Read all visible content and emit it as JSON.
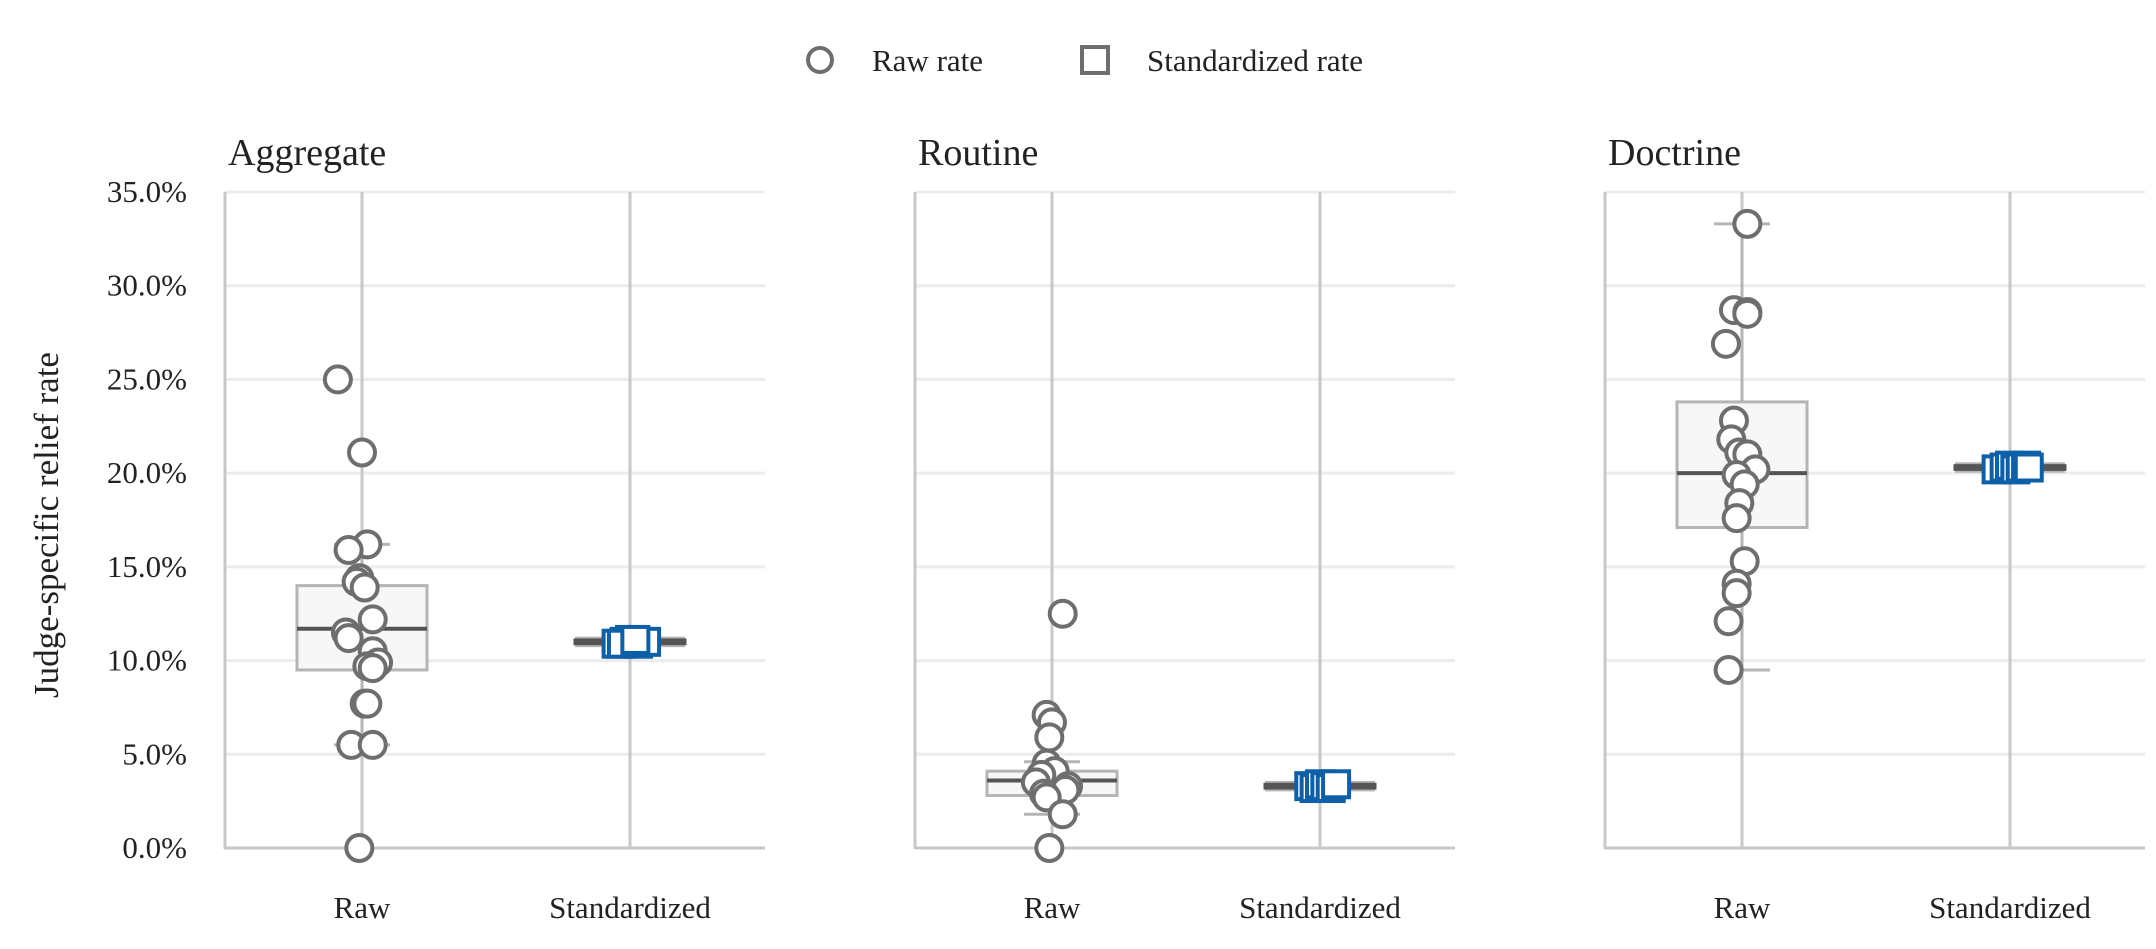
{
  "chart_data": {
    "type": "scatter",
    "ylabel": "Judge-specific relief rate",
    "ylim": [
      0,
      35
    ],
    "yticks": [
      0,
      5,
      10,
      15,
      20,
      25,
      30,
      35
    ],
    "yticklabels": [
      "0.0%",
      "5.0%",
      "10.0%",
      "15.0%",
      "20.0%",
      "25.0%",
      "30.0%",
      "35.0%"
    ],
    "categories": [
      "Raw",
      "Standardized"
    ],
    "grid": true,
    "legend": {
      "placement": "top-center",
      "entries": [
        {
          "label": "Raw rate",
          "marker": "circle"
        },
        {
          "label": "Standardized rate",
          "marker": "square"
        }
      ]
    },
    "colors": {
      "raw": "#6e6e6e",
      "standardized": "#0d5fa8",
      "box_fill": "#f7f7f7",
      "box_edge": "#b5b5b5",
      "median": "#555555",
      "grid": "#ececec",
      "axis": "#c8c8c8"
    },
    "panels": [
      {
        "title": "Aggregate",
        "raw": {
          "box": {
            "q1": 9.5,
            "median": 11.7,
            "q3": 14.0,
            "whisker_low": 5.5,
            "whisker_high": 16.2
          },
          "points": [
            25.0,
            21.1,
            16.2,
            15.9,
            14.4,
            14.2,
            13.9,
            12.2,
            11.5,
            11.2,
            10.5,
            9.9,
            9.7,
            9.6,
            7.7,
            7.7,
            5.5,
            5.5,
            0.0
          ],
          "jitter": [
            -0.09,
            0.0,
            0.02,
            -0.05,
            -0.01,
            -0.02,
            0.01,
            0.04,
            -0.06,
            -0.05,
            0.04,
            0.06,
            0.02,
            0.04,
            0.01,
            0.02,
            -0.04,
            0.04,
            -0.01
          ]
        },
        "standardized": {
          "box": {
            "q1": 10.9,
            "median": 11.0,
            "q3": 11.1,
            "whisker_low": 10.8,
            "whisker_high": 11.2
          },
          "points": [
            10.9,
            11.0,
            11.1,
            10.9,
            11.0,
            10.9,
            11.1
          ],
          "jitter": [
            -0.05,
            -0.02,
            0.0,
            0.03,
            0.06,
            -0.03,
            0.02
          ]
        }
      },
      {
        "title": "Routine",
        "raw": {
          "box": {
            "q1": 2.8,
            "median": 3.6,
            "q3": 4.1,
            "whisker_low": 1.8,
            "whisker_high": 4.6
          },
          "points": [
            12.5,
            7.1,
            6.7,
            5.9,
            4.5,
            4.1,
            3.9,
            3.5,
            3.3,
            3.1,
            2.9,
            2.7,
            1.8,
            0.0
          ],
          "jitter": [
            0.04,
            -0.02,
            0.0,
            -0.01,
            -0.02,
            0.01,
            -0.04,
            -0.06,
            0.06,
            0.05,
            -0.03,
            -0.02,
            0.04,
            -0.01
          ]
        },
        "standardized": {
          "box": {
            "q1": 3.2,
            "median": 3.3,
            "q3": 3.4,
            "whisker_low": 3.1,
            "whisker_high": 3.5
          },
          "points": [
            3.3,
            3.2,
            3.4,
            3.3,
            3.2,
            3.4
          ],
          "jitter": [
            -0.04,
            -0.02,
            0.0,
            0.02,
            0.04,
            0.06
          ]
        }
      },
      {
        "title": "Doctrine",
        "raw": {
          "box": {
            "q1": 17.1,
            "median": 20.0,
            "q3": 23.8,
            "whisker_low": 9.5,
            "whisker_high": 33.3
          },
          "points": [
            33.3,
            28.7,
            28.6,
            28.5,
            26.9,
            22.8,
            21.8,
            21.1,
            21.0,
            20.2,
            19.9,
            19.4,
            18.4,
            17.6,
            15.3,
            14.1,
            13.6,
            12.1,
            9.5
          ],
          "jitter": [
            0.02,
            -0.03,
            0.02,
            0.02,
            -0.06,
            -0.03,
            -0.04,
            -0.01,
            0.02,
            0.05,
            -0.02,
            0.01,
            -0.01,
            -0.02,
            0.01,
            -0.02,
            -0.02,
            -0.05,
            -0.05
          ]
        },
        "standardized": {
          "box": {
            "q1": 20.2,
            "median": 20.3,
            "q3": 20.4,
            "whisker_low": 20.1,
            "whisker_high": 20.5
          },
          "points": [
            20.2,
            20.3,
            20.4,
            20.2,
            20.3,
            20.4,
            20.3
          ],
          "jitter": [
            -0.05,
            -0.02,
            0.0,
            0.02,
            0.04,
            0.06,
            0.07
          ]
        }
      }
    ]
  }
}
